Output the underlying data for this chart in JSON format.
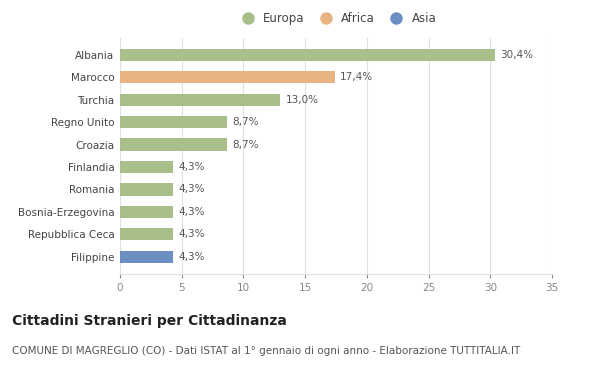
{
  "categories": [
    "Filippine",
    "Repubblica Ceca",
    "Bosnia-Erzegovina",
    "Romania",
    "Finlandia",
    "Croazia",
    "Regno Unito",
    "Turchia",
    "Marocco",
    "Albania"
  ],
  "values": [
    4.3,
    4.3,
    4.3,
    4.3,
    4.3,
    8.7,
    8.7,
    13.0,
    17.4,
    30.4
  ],
  "colors": [
    "#6b8fc2",
    "#a8bf8a",
    "#a8bf8a",
    "#a8bf8a",
    "#a8bf8a",
    "#a8bf8a",
    "#a8bf8a",
    "#a8bf8a",
    "#e8b484",
    "#a8bf8a"
  ],
  "labels": [
    "4,3%",
    "4,3%",
    "4,3%",
    "4,3%",
    "4,3%",
    "8,7%",
    "8,7%",
    "13,0%",
    "17,4%",
    "30,4%"
  ],
  "legend_labels": [
    "Europa",
    "Africa",
    "Asia"
  ],
  "legend_colors": [
    "#a8bf8a",
    "#e8b484",
    "#6b8fc2"
  ],
  "xlim": [
    0,
    35
  ],
  "xticks": [
    0,
    5,
    10,
    15,
    20,
    25,
    30,
    35
  ],
  "title": "Cittadini Stranieri per Cittadinanza",
  "subtitle": "COMUNE DI MAGREGLIO (CO) - Dati ISTAT al 1° gennaio di ogni anno - Elaborazione TUTTITALIA.IT",
  "background_color": "#ffffff",
  "grid_color": "#e0e0e0",
  "bar_height": 0.55,
  "title_fontsize": 10,
  "subtitle_fontsize": 7.5,
  "label_fontsize": 7.5,
  "tick_fontsize": 7.5,
  "legend_fontsize": 8.5
}
